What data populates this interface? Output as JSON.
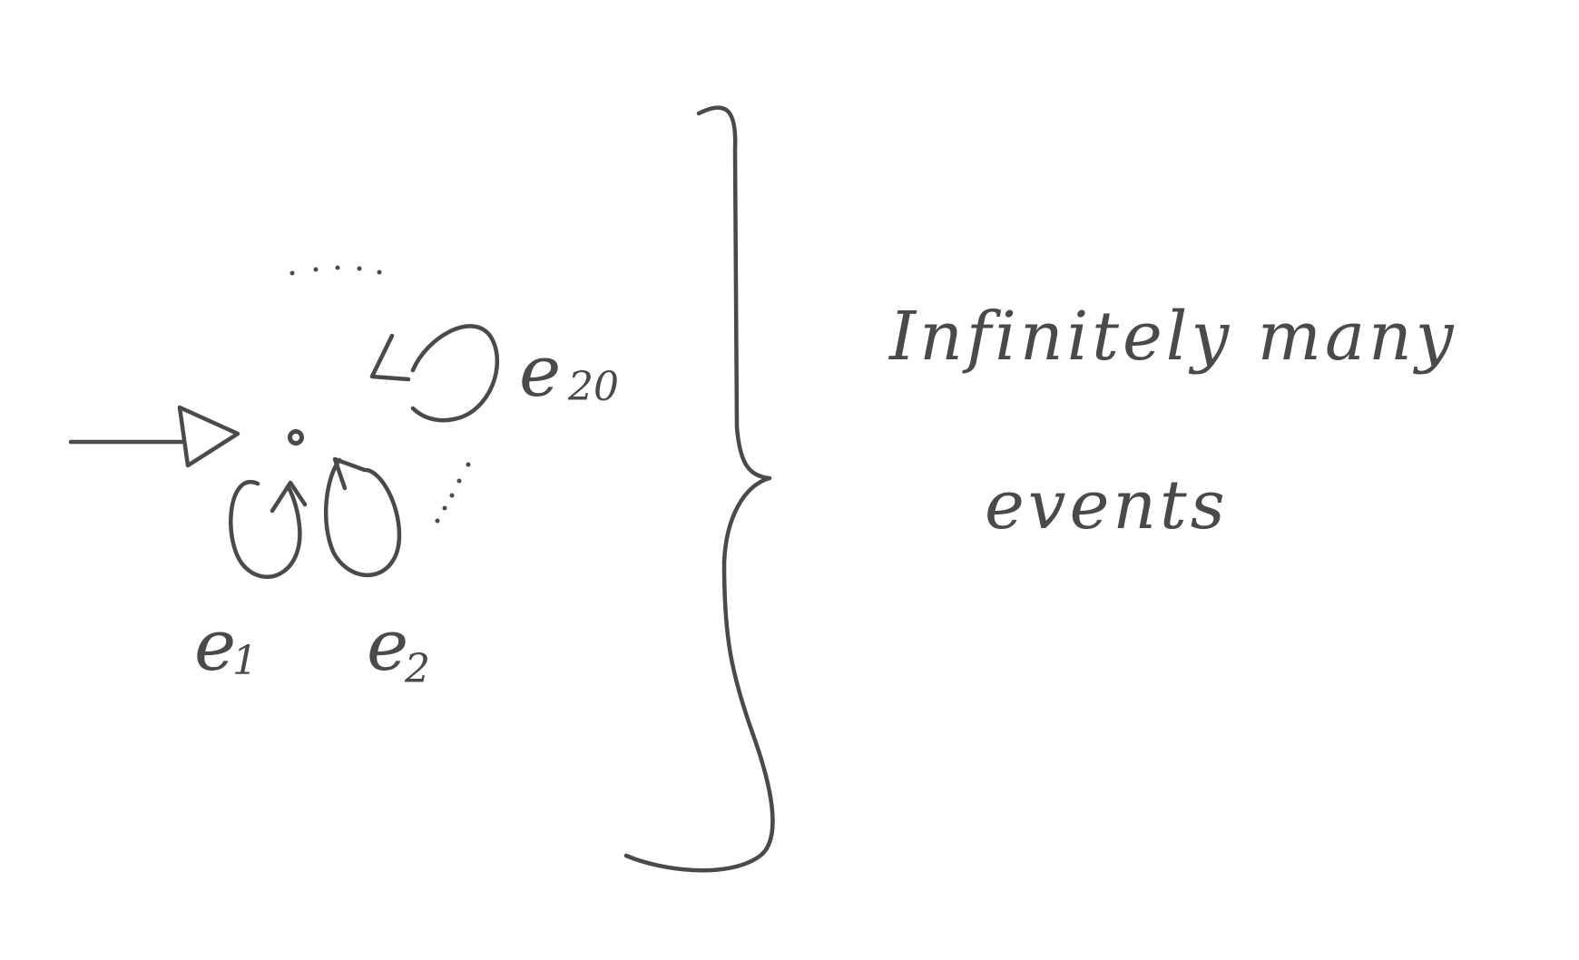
{
  "diagram": {
    "stroke_color": "#4a4a4a",
    "background": "#ffffff",
    "state": {
      "initial": true
    },
    "self_loops": [
      {
        "label_base": "e",
        "label_index": "1"
      },
      {
        "label_base": "e",
        "label_index": "2"
      },
      {
        "label_base": "e",
        "label_index": "20"
      }
    ],
    "ellipses_between_loops": true,
    "annotation": {
      "line1": "Infinitely many",
      "line2": "events"
    }
  }
}
